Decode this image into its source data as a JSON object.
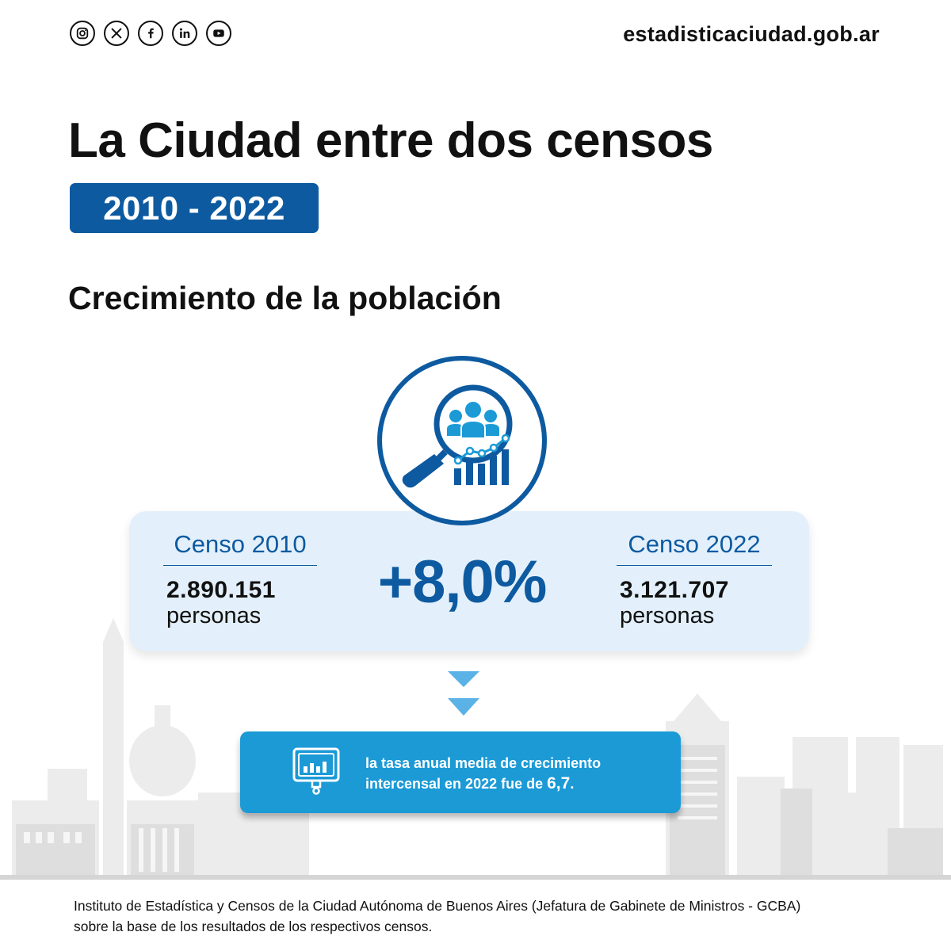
{
  "header": {
    "social": [
      {
        "name": "instagram-icon"
      },
      {
        "name": "x-icon"
      },
      {
        "name": "facebook-icon"
      },
      {
        "name": "linkedin-icon"
      },
      {
        "name": "youtube-icon"
      }
    ],
    "site_url": "estadisticaciudad.gob.ar"
  },
  "title": "La Ciudad entre dos censos",
  "years": "2010 - 2022",
  "subtitle": "Crecimiento de la población",
  "stats": {
    "census_2010": {
      "label": "Censo 2010",
      "value": "2.890.151",
      "unit": "personas"
    },
    "census_2022": {
      "label": "Censo 2022",
      "value": "3.121.707",
      "unit": "personas"
    },
    "change": "+8,0%"
  },
  "rate": {
    "text_line1": "la tasa anual media de crecimiento",
    "text_line2_prefix": "intercensal en 2022 fue de ",
    "text_value": "6,7",
    "text_suffix": "."
  },
  "footnote": {
    "line1": "Instituto de Estadística y Censos de la Ciudad Autónoma de Buenos Aires (Jefatura de Gabinete de Ministros - GCBA)",
    "line2": "sobre la base de los resultados de los respectivos censos."
  },
  "colors": {
    "primary_blue": "#0d5aa0",
    "light_blue": "#1b9ad6",
    "card_bg": "#e3f0fb",
    "skyline_gray": "#e6e6e6"
  }
}
